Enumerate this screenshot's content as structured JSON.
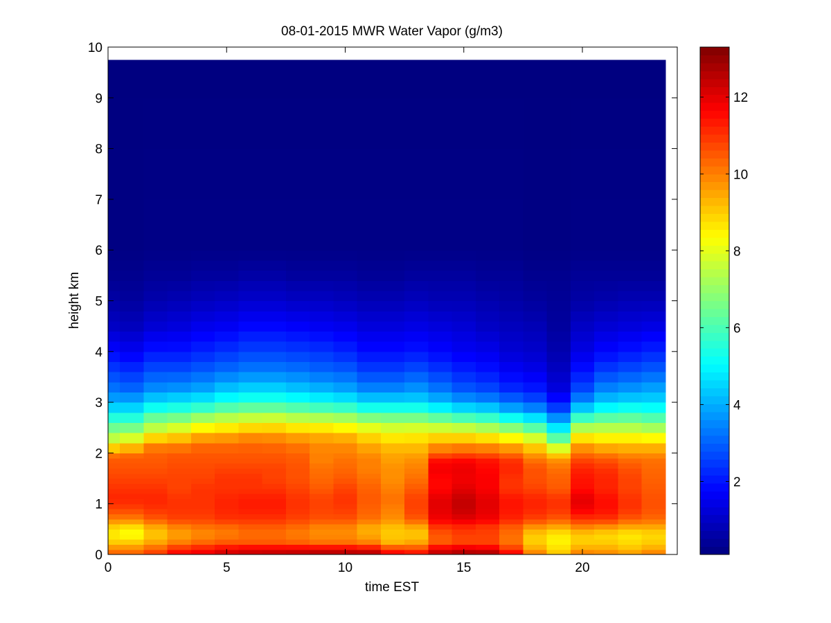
{
  "chart_data": {
    "type": "heatmap",
    "title": "08-01-2015 MWR Water Vapor (g/m3)",
    "xlabel": "time EST",
    "ylabel": "height km",
    "xlim": [
      0,
      24
    ],
    "ylim": [
      0,
      10
    ],
    "x_ticks": [
      "0",
      "5",
      "10",
      "15",
      "20"
    ],
    "y_ticks": [
      "0",
      "1",
      "2",
      "3",
      "4",
      "5",
      "6",
      "7",
      "8",
      "9",
      "10"
    ],
    "colorbar": {
      "colormap": "jet",
      "range": [
        0.1,
        13.3
      ],
      "ticks": [
        "2",
        "4",
        "6",
        "8",
        "10",
        "12"
      ]
    },
    "x_edges": [
      0,
      0.5,
      1.5,
      2.5,
      3.5,
      4.5,
      5.5,
      6.5,
      7.5,
      8.5,
      9.5,
      10.5,
      11.5,
      12.5,
      13.5,
      14.5,
      15.5,
      16.5,
      17.5,
      18.5,
      19.5,
      20.5,
      21.5,
      22.5,
      23.5
    ],
    "y_edges": [
      0,
      0.1,
      0.2,
      0.3,
      0.4,
      0.5,
      0.6,
      0.7,
      0.8,
      0.9,
      1.0,
      1.1,
      1.2,
      1.3,
      1.4,
      1.5,
      1.6,
      1.7,
      1.8,
      1.9,
      2.0,
      2.2,
      2.4,
      2.6,
      2.8,
      3.0,
      3.2,
      3.4,
      3.6,
      3.8,
      4.0,
      4.2,
      4.4,
      4.6,
      4.8,
      5.0,
      5.2,
      5.4,
      5.6,
      5.8,
      6.0,
      7.0,
      8.0,
      9.0,
      9.75
    ],
    "profile_heights": [
      0,
      0.1,
      0.25,
      0.4,
      0.55,
      0.7,
      0.9,
      1.1,
      1.3,
      1.5,
      1.7,
      1.85,
      2.0,
      2.2,
      2.4,
      2.6,
      2.8,
      3.0,
      3.3,
      3.6,
      4.0,
      4.5,
      5.0,
      5.5,
      6.0,
      9.75
    ],
    "profiles": [
      [
        10.5,
        10.0,
        9.0,
        8.5,
        9.0,
        10.0,
        10.8,
        11.2,
        11.0,
        10.8,
        10.6,
        10.5,
        10.0,
        8.0,
        7.0,
        6.0,
        5.0,
        4.0,
        3.2,
        2.6,
        1.8,
        1.0,
        0.6,
        0.3,
        0.15,
        0.1
      ],
      [
        10.5,
        10.0,
        9.0,
        8.2,
        8.8,
        10.0,
        10.8,
        11.2,
        11.0,
        10.8,
        10.6,
        10.5,
        10.2,
        8.5,
        7.2,
        6.0,
        5.0,
        4.0,
        3.0,
        2.4,
        1.6,
        0.9,
        0.5,
        0.3,
        0.15,
        0.1
      ],
      [
        11.0,
        10.5,
        9.5,
        9.0,
        9.5,
        10.5,
        11.0,
        11.2,
        11.0,
        10.8,
        10.6,
        10.5,
        10.4,
        9.8,
        8.0,
        7.0,
        5.8,
        4.6,
        3.5,
        2.8,
        2.0,
        1.2,
        0.7,
        0.4,
        0.2,
        0.1
      ],
      [
        11.8,
        11.2,
        10.0,
        9.5,
        10.0,
        10.8,
        11.0,
        11.0,
        10.8,
        10.8,
        10.7,
        10.6,
        10.5,
        9.8,
        8.5,
        7.2,
        6.0,
        4.8,
        3.6,
        2.8,
        2.0,
        1.3,
        0.8,
        0.4,
        0.2,
        0.1
      ],
      [
        12.0,
        11.5,
        10.3,
        9.8,
        10.2,
        10.8,
        11.0,
        11.0,
        11.0,
        10.8,
        10.7,
        10.6,
        10.5,
        10.2,
        9.0,
        7.8,
        6.4,
        5.0,
        3.8,
        3.0,
        2.2,
        1.5,
        0.9,
        0.5,
        0.2,
        0.1
      ],
      [
        12.4,
        11.8,
        10.5,
        10.0,
        10.3,
        11.0,
        11.2,
        11.2,
        11.0,
        11.0,
        10.8,
        10.6,
        10.5,
        10.2,
        9.2,
        8.0,
        6.8,
        5.4,
        4.2,
        3.2,
        2.4,
        1.6,
        1.0,
        0.5,
        0.2,
        0.1
      ],
      [
        12.5,
        12.0,
        10.5,
        10.2,
        10.5,
        11.0,
        11.3,
        11.3,
        11.0,
        11.0,
        10.8,
        10.6,
        10.5,
        10.3,
        9.5,
        8.2,
        7.0,
        5.6,
        4.4,
        3.4,
        2.6,
        1.8,
        1.1,
        0.6,
        0.2,
        0.1
      ],
      [
        12.6,
        12.0,
        10.5,
        10.2,
        10.5,
        11.0,
        11.3,
        11.3,
        11.0,
        10.8,
        10.8,
        10.6,
        10.5,
        10.2,
        9.5,
        8.3,
        7.0,
        5.6,
        4.4,
        3.4,
        2.6,
        1.8,
        1.1,
        0.6,
        0.2,
        0.1
      ],
      [
        12.7,
        12.0,
        10.4,
        10.0,
        10.3,
        10.8,
        11.0,
        11.0,
        10.8,
        10.6,
        10.6,
        10.5,
        10.4,
        10.0,
        9.3,
        8.0,
        6.8,
        5.4,
        4.2,
        3.3,
        2.5,
        1.7,
        1.0,
        0.5,
        0.2,
        0.1
      ],
      [
        12.9,
        12.0,
        10.2,
        9.8,
        10.0,
        10.6,
        10.8,
        10.8,
        10.5,
        10.3,
        10.2,
        10.0,
        10.0,
        9.8,
        9.2,
        8.0,
        6.6,
        5.2,
        4.0,
        3.1,
        2.4,
        1.6,
        1.0,
        0.5,
        0.2,
        0.1
      ],
      [
        12.9,
        12.0,
        10.2,
        9.8,
        10.0,
        10.6,
        10.9,
        11.0,
        10.8,
        10.5,
        10.3,
        10.2,
        10.0,
        9.8,
        9.0,
        7.8,
        6.5,
        5.0,
        3.8,
        3.0,
        2.2,
        1.5,
        0.9,
        0.5,
        0.2,
        0.1
      ],
      [
        13.0,
        11.8,
        10.0,
        9.4,
        9.5,
        10.2,
        10.4,
        10.5,
        10.4,
        10.2,
        10.0,
        10.0,
        9.8,
        9.3,
        8.6,
        7.4,
        6.0,
        4.6,
        3.4,
        2.6,
        1.9,
        1.3,
        0.8,
        0.4,
        0.2,
        0.1
      ],
      [
        12.0,
        11.0,
        9.3,
        9.0,
        9.2,
        9.8,
        10.0,
        10.2,
        10.0,
        9.8,
        9.8,
        9.6,
        9.5,
        9.0,
        8.3,
        7.2,
        6.0,
        4.6,
        3.4,
        2.6,
        1.9,
        1.3,
        0.8,
        0.4,
        0.2,
        0.1
      ],
      [
        11.8,
        10.8,
        9.5,
        9.0,
        9.5,
        10.5,
        10.8,
        10.8,
        10.5,
        10.2,
        10.0,
        9.8,
        9.5,
        9.0,
        8.4,
        7.2,
        6.0,
        4.6,
        3.6,
        2.8,
        2.0,
        1.4,
        0.9,
        0.5,
        0.2,
        0.1
      ],
      [
        12.6,
        12.0,
        10.5,
        10.5,
        11.0,
        11.8,
        12.0,
        12.0,
        11.6,
        11.6,
        11.8,
        11.5,
        10.4,
        9.5,
        8.4,
        7.0,
        5.6,
        4.2,
        3.2,
        2.5,
        1.8,
        1.3,
        0.8,
        0.5,
        0.2,
        0.1
      ],
      [
        12.9,
        12.2,
        10.8,
        10.8,
        11.2,
        12.0,
        12.4,
        12.4,
        12.0,
        11.8,
        11.9,
        11.6,
        10.6,
        9.6,
        8.3,
        6.8,
        5.2,
        3.8,
        2.8,
        2.2,
        1.6,
        1.2,
        0.8,
        0.5,
        0.2,
        0.1
      ],
      [
        13.0,
        12.0,
        10.8,
        10.8,
        11.0,
        11.8,
        12.0,
        12.0,
        11.7,
        11.7,
        11.6,
        11.4,
        10.5,
        9.5,
        8.0,
        6.5,
        5.0,
        3.6,
        2.6,
        2.0,
        1.5,
        1.0,
        0.7,
        0.4,
        0.2,
        0.1
      ],
      [
        12.0,
        11.0,
        10.2,
        10.2,
        10.5,
        11.2,
        11.4,
        11.4,
        11.0,
        11.0,
        11.2,
        11.0,
        10.2,
        9.2,
        7.6,
        6.0,
        4.4,
        3.2,
        2.2,
        1.7,
        1.2,
        0.9,
        0.6,
        0.4,
        0.2,
        0.1
      ],
      [
        10.2,
        9.5,
        9.0,
        9.0,
        9.8,
        10.8,
        11.2,
        11.2,
        10.8,
        10.6,
        10.6,
        10.2,
        9.6,
        8.6,
        7.0,
        5.4,
        4.0,
        2.8,
        2.0,
        1.5,
        1.1,
        0.8,
        0.5,
        0.3,
        0.15,
        0.1
      ],
      [
        9.2,
        8.8,
        8.5,
        8.6,
        9.5,
        10.5,
        11.0,
        11.0,
        10.5,
        10.4,
        10.2,
        9.8,
        8.8,
        7.0,
        5.4,
        4.2,
        3.0,
        2.0,
        1.3,
        1.0,
        0.7,
        0.5,
        0.4,
        0.3,
        0.15,
        0.1
      ],
      [
        10.2,
        9.5,
        9.0,
        9.0,
        10.0,
        11.0,
        11.8,
        12.0,
        11.5,
        11.4,
        11.2,
        10.8,
        10.2,
        9.4,
        8.0,
        6.6,
        5.0,
        3.6,
        2.6,
        2.0,
        1.4,
        1.0,
        0.6,
        0.4,
        0.2,
        0.1
      ],
      [
        10.0,
        9.5,
        9.0,
        8.8,
        9.8,
        11.0,
        11.5,
        11.5,
        11.2,
        11.2,
        11.0,
        10.6,
        10.0,
        9.0,
        8.0,
        6.8,
        5.6,
        4.4,
        3.4,
        2.6,
        1.8,
        1.2,
        0.7,
        0.4,
        0.2,
        0.1
      ],
      [
        9.8,
        9.2,
        8.8,
        8.6,
        9.5,
        10.5,
        11.0,
        11.0,
        10.8,
        10.8,
        10.6,
        10.3,
        9.8,
        9.0,
        8.0,
        6.8,
        5.8,
        4.6,
        3.6,
        2.8,
        2.0,
        1.3,
        0.8,
        0.4,
        0.2,
        0.1
      ],
      [
        10.2,
        9.5,
        9.0,
        8.8,
        9.5,
        10.3,
        10.6,
        10.6,
        10.5,
        10.4,
        10.3,
        10.2,
        9.8,
        9.0,
        7.8,
        6.6,
        5.6,
        4.6,
        3.8,
        3.0,
        2.2,
        1.4,
        0.8,
        0.4,
        0.2,
        0.1
      ]
    ]
  }
}
